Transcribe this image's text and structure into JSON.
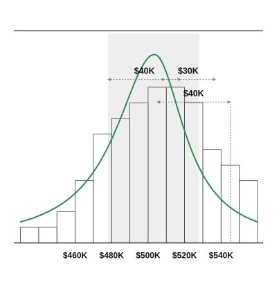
{
  "chart_data": {
    "type": "bar",
    "title": "",
    "xlabel": "",
    "ylabel": "",
    "x_ticks": [
      {
        "value": 460000,
        "label": "$460K"
      },
      {
        "value": 480000,
        "label": "$480K"
      },
      {
        "value": 500000,
        "label": "$500K"
      },
      {
        "value": 520000,
        "label": "$520K"
      },
      {
        "value": 540000,
        "label": "$540K"
      }
    ],
    "bins": [
      {
        "start": 430000,
        "end": 440000,
        "value": 1
      },
      {
        "start": 440000,
        "end": 450000,
        "value": 1
      },
      {
        "start": 450000,
        "end": 460000,
        "value": 2
      },
      {
        "start": 460000,
        "end": 470000,
        "value": 4
      },
      {
        "start": 470000,
        "end": 480000,
        "value": 7
      },
      {
        "start": 480000,
        "end": 490000,
        "value": 8
      },
      {
        "start": 490000,
        "end": 500000,
        "value": 9
      },
      {
        "start": 500000,
        "end": 510000,
        "value": 10
      },
      {
        "start": 510000,
        "end": 520000,
        "value": 10
      },
      {
        "start": 520000,
        "end": 530000,
        "value": 9
      },
      {
        "start": 530000,
        "end": 540000,
        "value": 6
      },
      {
        "start": 540000,
        "end": 550000,
        "value": 5
      },
      {
        "start": 550000,
        "end": 560000,
        "value": 4
      }
    ],
    "curve": {
      "type": "normal-like density",
      "peak_x": 503500,
      "peak_y": 12.1,
      "color": "#2e8b57"
    },
    "shaded_range": {
      "start": 478000,
      "end": 528000,
      "color": "#eeeeee"
    },
    "annotations": [
      {
        "label": "$40K",
        "from": 478000,
        "to": 518000,
        "level": 10.5
      },
      {
        "label": "$30K",
        "from": 507000,
        "to": 537000,
        "level": 10.5
      },
      {
        "label": "$40K",
        "from": 505000,
        "to": 545000,
        "level": 9.05
      }
    ],
    "reference_line": {
      "x": 545000
    },
    "xlim": [
      430000,
      560000
    ],
    "ylim": [
      0,
      13.4
    ],
    "grid": false,
    "colors": {
      "bar_fill": "#ffffff",
      "bar_stroke": "#444444",
      "curve": "#2e8b57",
      "axis": "#333333",
      "annotation_line": "#888888",
      "reference_line": "#777777",
      "shade": "#eeeeee"
    }
  }
}
